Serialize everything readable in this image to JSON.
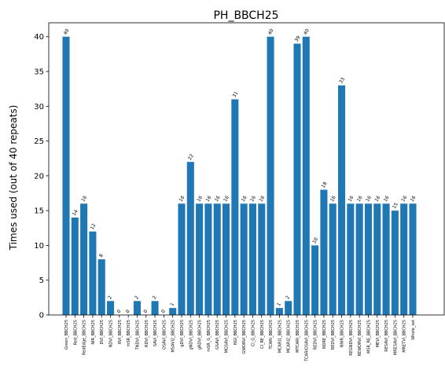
{
  "chart_data": {
    "type": "bar",
    "title": "PH_BBCH25",
    "xlabel": "",
    "ylabel": "Times used (out of 40 repeats)",
    "ylim": [
      0,
      42
    ],
    "yticks": [
      0,
      5,
      10,
      15,
      20,
      25,
      30,
      35,
      40
    ],
    "bar_color": "#1f77b4",
    "grid": false,
    "categories": [
      "Green_BBCH25",
      "Red_BBCH25",
      "RedEdge_BBCH25",
      "NIR_BBCH25",
      "DVI_BBCH25",
      "NDVI_BBCH25",
      "RVI_BBCH25",
      "mSR_BBCH25",
      "TNDVI_BBCH25",
      "RDVI_BBCH25",
      "SAVI_BBCH25",
      "OSAVI_BBCH25",
      "MSAVI2_BBCH25",
      "gDVI_BBCH25",
      "gNDVI_BBCH25",
      "gRDVI_BBCH25",
      "mSR_G_BBCH25",
      "GSAVI_BBCH25",
      "MGSAVI_BBCH25",
      "NGI_BBCH25",
      "GWDRVI_BBCH25",
      "CI_G_BBCH25",
      "CI_RE_BBCH25",
      "TCARI_BBCH25",
      "MCARI1_BBCH25",
      "MCARI2_BBCH25",
      "MTCARI_BBCH25",
      "TCARIOSAVI_BBCH25",
      "REDVI_BBCH25",
      "NDRE_BBCH25",
      "REDVI_BBCH25",
      "NNIR_BBCH25",
      "REGNDVI_BBCH25",
      "REWDRVI_BBCH25",
      "MSR_RE_BBCH25",
      "MEVI_BBCH25",
      "RESAVI_BBCH25",
      "MRESAVI_BBCH25",
      "MRETVI_BBCH25",
      "Whole_set"
    ],
    "values": [
      40,
      14,
      16,
      12,
      8,
      2,
      0,
      0,
      2,
      0,
      2,
      0,
      1,
      16,
      22,
      16,
      16,
      16,
      16,
      31,
      16,
      16,
      16,
      40,
      1,
      2,
      39,
      40,
      10,
      18,
      16,
      33,
      16,
      16,
      16,
      16,
      16,
      15,
      16,
      16
    ]
  }
}
